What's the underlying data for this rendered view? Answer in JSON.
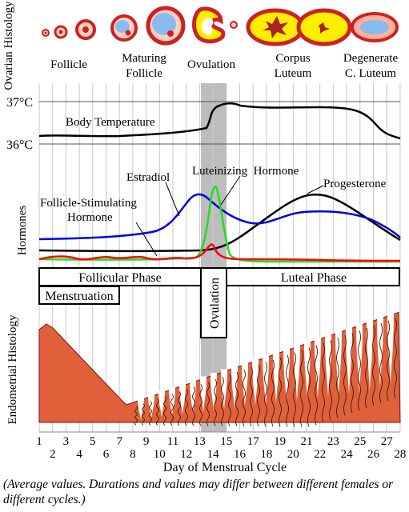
{
  "ovarian": {
    "axis_label": "Ovarian Histology",
    "stages": [
      {
        "line1": "Follicle",
        "line2": ""
      },
      {
        "line1": "Maturing",
        "line2": "Follicle"
      },
      {
        "line1": "Ovulation",
        "line2": ""
      },
      {
        "line1": "Corpus",
        "line2": "Luteum"
      },
      {
        "line1": "Degenerate",
        "line2": "C. Luteum"
      }
    ]
  },
  "temperature": {
    "title": "Body Temperature",
    "high_label": "37°C",
    "low_label": "36°C"
  },
  "hormones": {
    "axis_label": "Hormones",
    "labels": {
      "fsh_line1": "Follicle-Stimulating",
      "fsh_line2": "Hormone",
      "estradiol": "Estradiol",
      "lh": "Luteinizing  Hormone",
      "progesterone": "Progesterone"
    },
    "colors": {
      "fsh": "#ff0000",
      "estradiol": "#0000dd",
      "lh": "#22dd22",
      "progesterone": "#000000"
    }
  },
  "phases": {
    "follicular": "Follicular Phase",
    "luteal": "Luteal Phase",
    "menstruation": "Menstruation",
    "ovulation": "Ovulation"
  },
  "endometrial": {
    "axis_label": "Endometrial Histology",
    "tissue_color": "#e0603a",
    "shedding_color": "#7a1010"
  },
  "x_axis": {
    "label": "Day of Menstrual Cycle",
    "days": [
      "1",
      "2",
      "3",
      "4",
      "5",
      "6",
      "7",
      "8",
      "9",
      "10",
      "11",
      "12",
      "13",
      "14",
      "15",
      "16",
      "17",
      "18",
      "19",
      "20",
      "21",
      "22",
      "23",
      "24",
      "25",
      "26",
      "27",
      "28"
    ]
  },
  "note": "(Average values. Durations and values may differ between different females or different cycles.)",
  "colors": {
    "ovulation_band": "#bdbdbd",
    "follicle_outer": "#cc2222",
    "follicle_fill": "#ffd0c0",
    "antrum": "#88bbee",
    "luteum_yellow": "#ffee00"
  }
}
